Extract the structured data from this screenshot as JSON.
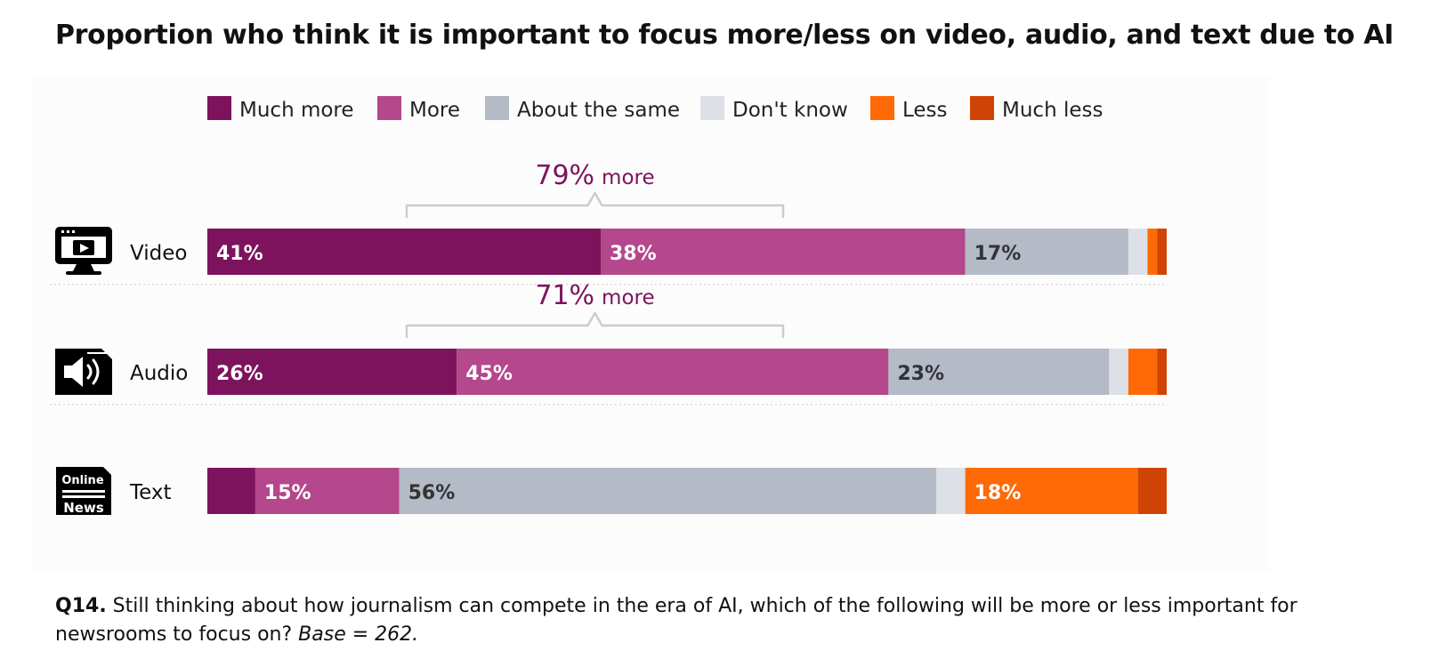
{
  "chart_data": {
    "type": "bar",
    "orientation": "horizontal",
    "stacked": true,
    "title": "Proportion who think it is important to focus more/less on video, audio, and text due to AI",
    "legend": [
      {
        "name": "Much more",
        "color": "#7d135d"
      },
      {
        "name": "More",
        "color": "#b5478c"
      },
      {
        "name": "About the same",
        "color": "#b4bac6"
      },
      {
        "name": "Don't know",
        "color": "#dde0e6"
      },
      {
        "name": "Less",
        "color": "#ff6a07"
      },
      {
        "name": "Much less",
        "color": "#cf4304"
      }
    ],
    "legend_position": "top",
    "categories": [
      "Video",
      "Audio",
      "Text"
    ],
    "icons": [
      "monitor-play-icon",
      "speaker-icon",
      "online-news-icon"
    ],
    "icon_text": [
      "Online",
      "News"
    ],
    "series": [
      {
        "name": "Much more",
        "values": [
          41,
          26,
          5
        ],
        "labels": [
          "41%",
          "26%",
          ""
        ],
        "label_color": "#ffffff"
      },
      {
        "name": "More",
        "values": [
          38,
          45,
          15
        ],
        "labels": [
          "38%",
          "45%",
          "15%"
        ],
        "label_color": "#ffffff"
      },
      {
        "name": "About the same",
        "values": [
          17,
          23,
          56
        ],
        "labels": [
          "17%",
          "23%",
          "56%"
        ],
        "label_color": "#333333"
      },
      {
        "name": "Don't know",
        "values": [
          2,
          2,
          3
        ],
        "labels": [
          "",
          "",
          ""
        ],
        "label_color": "#333333"
      },
      {
        "name": "Less",
        "values": [
          1,
          3,
          18
        ],
        "labels": [
          "",
          "",
          "18%"
        ],
        "label_color": "#ffffff"
      },
      {
        "name": "Much less",
        "values": [
          1,
          1,
          3
        ],
        "labels": [
          "",
          "",
          ""
        ],
        "label_color": "#ffffff"
      }
    ],
    "annotations": [
      {
        "category": "Video",
        "value": "79%",
        "text": "more",
        "color": "#7d135d"
      },
      {
        "category": "Audio",
        "value": "71%",
        "text": "more",
        "color": "#7d135d"
      }
    ],
    "xlim": [
      0,
      100
    ],
    "grid": false
  },
  "footnote": {
    "question_id": "Q14.",
    "question_text": " Still thinking about how journalism can compete in the era of AI, which of the following will be more or less important for newsrooms to focus on? ",
    "base": "Base = 262."
  }
}
